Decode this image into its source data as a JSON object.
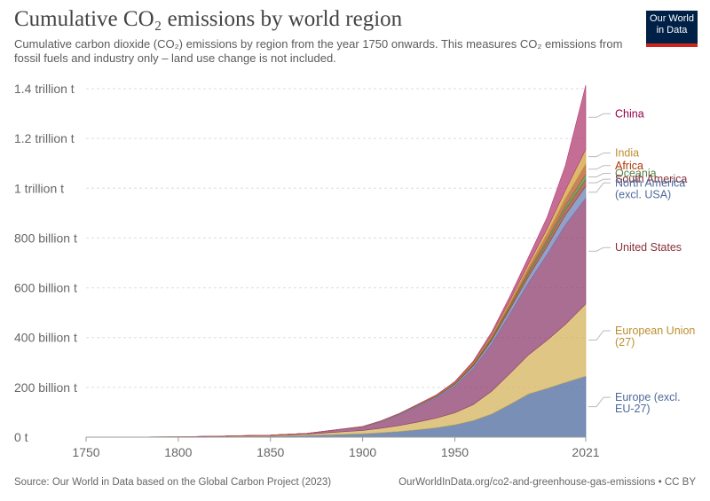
{
  "header": {
    "title": "Cumulative CO₂ emissions by world region",
    "subtitle": "Cumulative carbon dioxide (CO₂) emissions by region from the year 1750 onwards. This measures CO₂ emissions from fossil fuels and industry only – land use change is not included.",
    "logo_line1": "Our World",
    "logo_line2": "in Data"
  },
  "footer": {
    "source": "Source: Our World in Data based on the Global Carbon Project (2023)",
    "url": "OurWorldInData.org/co2-and-greenhouse-gas-emissions • CC BY"
  },
  "chart_data": {
    "type": "area",
    "stacked": true,
    "x": [
      1750,
      1800,
      1850,
      1870,
      1900,
      1910,
      1920,
      1930,
      1940,
      1950,
      1960,
      1970,
      1980,
      1990,
      2000,
      2010,
      2021
    ],
    "xticks": [
      "1750",
      "1800",
      "1850",
      "1900",
      "1950",
      "2021"
    ],
    "xtick_values": [
      1750,
      1800,
      1850,
      1900,
      1950,
      2021
    ],
    "yticks": [
      "0 t",
      "200 billion t",
      "400 billion t",
      "600 billion t",
      "800 billion t",
      "1 trillion t",
      "1.2 trillion t",
      "1.4 trillion t"
    ],
    "ytick_values": [
      0,
      200,
      400,
      600,
      800,
      1000,
      1200,
      1400
    ],
    "ylim": [
      0,
      1400
    ],
    "xlim": [
      1750,
      2021
    ],
    "grid": true,
    "unit": "billion t",
    "series": [
      {
        "name": "Europe (excl. EU-27)",
        "label_lines": [
          "Europe (excl.",
          "EU-27)"
        ],
        "color": "#4c6a9c",
        "label_color": "#4c6a9c",
        "values": [
          0,
          0.8,
          4,
          7,
          14,
          18,
          23,
          30,
          38,
          50,
          67,
          93,
          132,
          174,
          196,
          220,
          245
        ]
      },
      {
        "name": "European Union (27)",
        "label_lines": [
          "European Union",
          "(27)"
        ],
        "color": "#d4b35b",
        "label_color": "#bc8e2f",
        "values": [
          0,
          0.3,
          2.5,
          5,
          13,
          18,
          24,
          31,
          39,
          48,
          64,
          92,
          125,
          157,
          193,
          233,
          290
        ]
      },
      {
        "name": "United States",
        "label_lines": [
          "United States"
        ],
        "color": "#8d3d6e",
        "label_color": "#883039",
        "values": [
          0,
          0.1,
          1.5,
          3,
          14,
          26,
          43,
          62,
          80,
          107,
          145,
          190,
          240,
          290,
          345,
          400,
          425
        ]
      },
      {
        "name": "North America (excl. USA)",
        "label_lines": [
          "North America",
          "(excl. USA)"
        ],
        "color": "#6d82b8",
        "label_color": "#4c6a9c",
        "values": [
          0,
          0,
          0.1,
          0.3,
          1,
          1.8,
          2.8,
          4,
          5.2,
          7,
          10,
          14,
          19,
          25,
          32,
          40,
          48
        ]
      },
      {
        "name": "South America",
        "label_lines": [
          "South America"
        ],
        "color": "#a0432e",
        "label_color": "#883039",
        "values": [
          0,
          0,
          0,
          0,
          0.2,
          0.4,
          0.7,
          1,
          1.5,
          2.2,
          3.5,
          5.5,
          9,
          13,
          17,
          23,
          28
        ]
      },
      {
        "name": "Oceania",
        "label_lines": [
          "Oceania"
        ],
        "color": "#4f8a47",
        "label_color": "#578145",
        "values": [
          0,
          0,
          0,
          0,
          0.2,
          0.4,
          0.6,
          0.9,
          1.3,
          1.8,
          2.7,
          4,
          5.5,
          7.5,
          10,
          13,
          19
        ]
      },
      {
        "name": "Africa",
        "label_lines": [
          "Africa"
        ],
        "color": "#b55a25",
        "label_color": "#b13507",
        "values": [
          0,
          0,
          0,
          0,
          0.3,
          0.6,
          1,
          1.5,
          2,
          3,
          5,
          8,
          12,
          17,
          23,
          30,
          43
        ]
      },
      {
        "name": "India",
        "label_lines": [
          "India"
        ],
        "color": "#d1a13c",
        "label_color": "#bc8e2f",
        "values": [
          0,
          0,
          0,
          0,
          0.2,
          0.4,
          0.6,
          1,
          1.5,
          2.2,
          3.5,
          5.5,
          8.5,
          13,
          20,
          33,
          58
        ]
      },
      {
        "name": "China",
        "label_lines": [
          "China"
        ],
        "color": "#b13d72",
        "label_color": "#970046",
        "values": [
          0,
          0,
          0,
          0,
          0.1,
          0.2,
          0.5,
          1,
          1.5,
          2,
          5,
          10,
          17,
          28,
          47,
          100,
          258
        ]
      }
    ]
  }
}
